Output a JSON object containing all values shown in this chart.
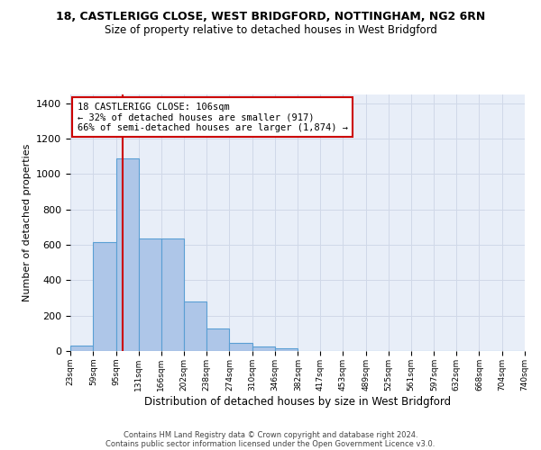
{
  "title": "18, CASTLERIGG CLOSE, WEST BRIDGFORD, NOTTINGHAM, NG2 6RN",
  "subtitle": "Size of property relative to detached houses in West Bridgford",
  "xlabel": "Distribution of detached houses by size in West Bridgford",
  "ylabel": "Number of detached properties",
  "footer_line1": "Contains HM Land Registry data © Crown copyright and database right 2024.",
  "footer_line2": "Contains public sector information licensed under the Open Government Licence v3.0.",
  "annotation_line1": "18 CASTLERIGG CLOSE: 106sqm",
  "annotation_line2": "← 32% of detached houses are smaller (917)",
  "annotation_line3": "66% of semi-detached houses are larger (1,874) →",
  "property_size": 106,
  "bin_edges": [
    23,
    59,
    95,
    131,
    166,
    202,
    238,
    274,
    310,
    346,
    382,
    417,
    453,
    489,
    525,
    561,
    597,
    632,
    668,
    704,
    740
  ],
  "bin_counts": [
    30,
    615,
    1090,
    635,
    635,
    280,
    125,
    45,
    25,
    15,
    0,
    0,
    0,
    0,
    0,
    0,
    0,
    0,
    0,
    0
  ],
  "bar_color": "#aec6e8",
  "bar_edgecolor": "#5a9fd4",
  "redline_color": "#cc0000",
  "annotation_box_edgecolor": "#cc0000",
  "annotation_box_facecolor": "#ffffff",
  "grid_color": "#d0d8e8",
  "background_color": "#e8eef8",
  "ylim": [
    0,
    1450
  ],
  "yticks": [
    0,
    200,
    400,
    600,
    800,
    1000,
    1200,
    1400
  ],
  "tick_labels": [
    "23sqm",
    "59sqm",
    "95sqm",
    "131sqm",
    "166sqm",
    "202sqm",
    "238sqm",
    "274sqm",
    "310sqm",
    "346sqm",
    "382sqm",
    "417sqm",
    "453sqm",
    "489sqm",
    "525sqm",
    "561sqm",
    "597sqm",
    "632sqm",
    "668sqm",
    "704sqm",
    "740sqm"
  ]
}
